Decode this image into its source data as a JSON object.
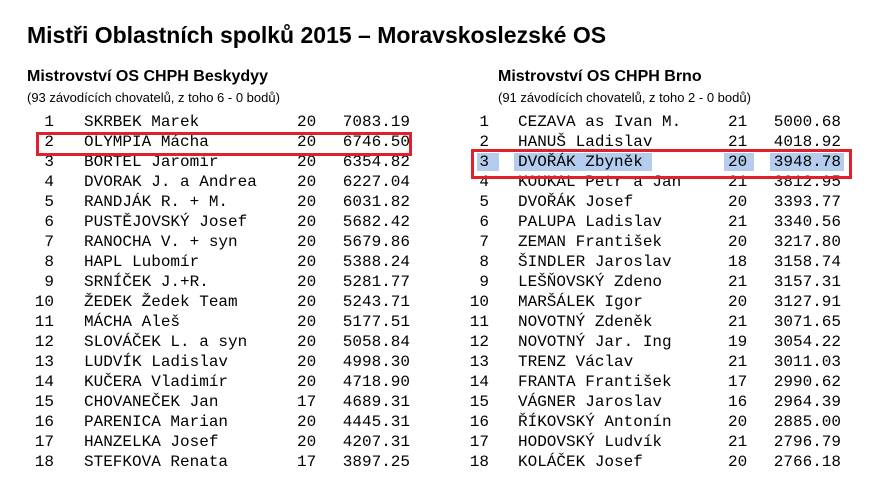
{
  "header": {
    "title": "Mistři Oblastních spolků 2015 – Moravskoslezské OS"
  },
  "sections": [
    {
      "title": "Mistrovství OS CHPH Beskydyy",
      "subtitle": "(93 závodících chovatelů, z toho 6 - 0 bodů)",
      "rows": [
        [
          "1",
          "SKRBEK Marek",
          "20",
          "7083.19"
        ],
        [
          "2",
          "OLYMPIA Mácha",
          "20",
          "6746.50"
        ],
        [
          "3",
          "BORTEL Jaromír",
          "20",
          "6354.82"
        ],
        [
          "4",
          "DVORAK J. a Andrea",
          "20",
          "6227.04"
        ],
        [
          "5",
          "RANDJÁK R. + M.",
          "20",
          "6031.82"
        ],
        [
          "6",
          "PUSTĚJOVSKÝ Josef",
          "20",
          "5682.42"
        ],
        [
          "7",
          "RANOCHA V. + syn",
          "20",
          "5679.86"
        ],
        [
          "8",
          "HAPL Lubomír",
          "20",
          "5388.24"
        ],
        [
          "9",
          "SRNÍČEK J.+R.",
          "20",
          "5281.77"
        ],
        [
          "10",
          "ŽEDEK Žedek Team",
          "20",
          "5243.71"
        ],
        [
          "11",
          "MÁCHA Aleš",
          "20",
          "5177.51"
        ],
        [
          "12",
          "SLOVÁČEK L. a syn",
          "20",
          "5058.84"
        ],
        [
          "13",
          "LUDVÍK Ladislav",
          "20",
          "4998.30"
        ],
        [
          "14",
          "KUČERA Vladimír",
          "20",
          "4718.90"
        ],
        [
          "15",
          "CHOVANEČEK Jan",
          "17",
          "4689.31"
        ],
        [
          "16",
          "PARENICA Marian",
          "20",
          "4445.31"
        ],
        [
          "17",
          "HANZELKA Josef",
          "20",
          "4207.31"
        ],
        [
          "18",
          "STEFKOVA Renata",
          "17",
          "3897.25"
        ]
      ]
    },
    {
      "title": "Mistrovství OS CHPH Brno",
      "subtitle": "(91 závodících chovatelů, z toho 2 - 0 bodů)",
      "rows": [
        [
          "1",
          "CEZAVA as Ivan M.",
          "21",
          "5000.68"
        ],
        [
          "2",
          "HANUŠ Ladislav",
          "21",
          "4018.92"
        ],
        [
          "3",
          "DVOŘÁK Zbyněk",
          "20",
          "3948.78"
        ],
        [
          "4",
          "KOUKAL Petr a Jan",
          "21",
          "3812.95"
        ],
        [
          "5",
          "DVOŘÁK Josef",
          "20",
          "3393.77"
        ],
        [
          "6",
          "PALUPA Ladislav",
          "21",
          "3340.56"
        ],
        [
          "7",
          "ZEMAN František",
          "20",
          "3217.80"
        ],
        [
          "8",
          "ŠINDLER Jaroslav",
          "18",
          "3158.74"
        ],
        [
          "9",
          "LEŠŇOVSKÝ Zdeno",
          "21",
          "3157.31"
        ],
        [
          "10",
          "MARŠÁLEK Igor",
          "20",
          "3127.91"
        ],
        [
          "11",
          "NOVOTNÝ Zdeněk",
          "21",
          "3071.65"
        ],
        [
          "12",
          "NOVOTNÝ Jar. Ing",
          "19",
          "3054.22"
        ],
        [
          "13",
          "TRENZ Václav",
          "21",
          "3011.03"
        ],
        [
          "14",
          "FRANTA František",
          "17",
          "2990.62"
        ],
        [
          "15",
          "VÁGNER Jaroslav",
          "16",
          "2964.39"
        ],
        [
          "16",
          "ŘÍKOVSKÝ Antonín",
          "20",
          "2885.00"
        ],
        [
          "17",
          "HODOVSKÝ Ludvík",
          "21",
          "2796.79"
        ],
        [
          "18",
          "KOLÁČEK Josef",
          "20",
          "2766.18"
        ]
      ]
    }
  ]
}
